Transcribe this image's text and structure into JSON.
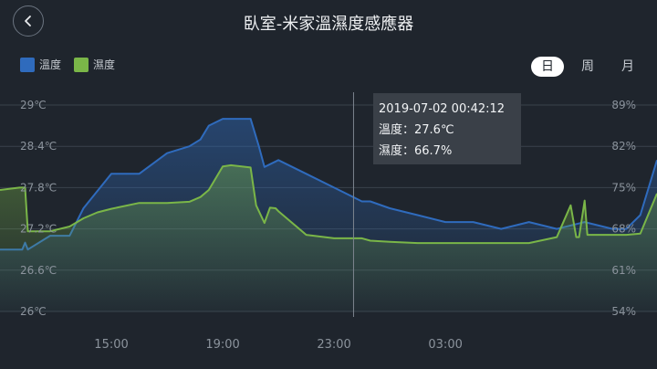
{
  "header": {
    "title": "臥室-米家溫濕度感應器",
    "back_icon": "chevron-left-icon"
  },
  "legend": [
    {
      "label": "溫度",
      "color": "#2f6bbd"
    },
    {
      "label": "濕度",
      "color": "#7ab648"
    }
  ],
  "range_tabs": [
    {
      "label": "日",
      "active": true
    },
    {
      "label": "周",
      "active": false
    },
    {
      "label": "月",
      "active": false
    }
  ],
  "tooltip": {
    "time": "2019-07-02 00:42:12",
    "temp": "溫度：27.6℃",
    "hum": "濕度：66.7%"
  },
  "chart_data": {
    "type": "line",
    "x_ticks": [
      "15:00",
      "19:00",
      "23:00",
      "03:00"
    ],
    "y_left_ticks": [
      "29℃",
      "28.4℃",
      "27.8℃",
      "27.2℃",
      "26.6℃",
      "26℃"
    ],
    "y_right_ticks": [
      "89%",
      "82%",
      "75%",
      "68%",
      "61%",
      "54%"
    ],
    "ylim_left": [
      26,
      29
    ],
    "ylim_right": [
      54,
      89
    ],
    "xlim": [
      11.0,
      34.6
    ],
    "series": [
      {
        "name": "溫度",
        "color": "#2f6bbd",
        "x": [
          11.0,
          11.8,
          11.9,
          12.0,
          12.8,
          13.5,
          14.0,
          14.4,
          15.0,
          16.0,
          17.0,
          17.8,
          18.2,
          18.5,
          19.0,
          19.3,
          20.0,
          20.3,
          20.5,
          21.0,
          22.0,
          23.0,
          24.0,
          24.3,
          25.0,
          26.0,
          27.0,
          28.0,
          29.0,
          30.0,
          31.0,
          32.0,
          33.0,
          33.5,
          34.0,
          34.6
        ],
        "y": [
          26.9,
          26.9,
          27.0,
          26.9,
          27.1,
          27.1,
          27.5,
          27.7,
          28.0,
          28.0,
          28.3,
          28.4,
          28.5,
          28.7,
          28.8,
          28.8,
          28.8,
          28.4,
          28.1,
          28.2,
          28.0,
          27.8,
          27.6,
          27.6,
          27.5,
          27.4,
          27.3,
          27.3,
          27.2,
          27.3,
          27.2,
          27.3,
          27.2,
          27.2,
          27.4,
          28.2
        ]
      },
      {
        "name": "濕度",
        "color": "#7ab648",
        "x": [
          11.0,
          11.7,
          11.9,
          12.0,
          12.8,
          13.5,
          14.0,
          14.5,
          15.0,
          16.0,
          17.0,
          17.8,
          18.2,
          18.5,
          19.0,
          19.3,
          20.0,
          20.2,
          20.5,
          20.7,
          20.9,
          21.0,
          22.0,
          23.0,
          24.0,
          24.3,
          25.0,
          26.0,
          27.0,
          28.0,
          29.0,
          30.0,
          31.0,
          31.5,
          31.7,
          31.8,
          32.0,
          32.1,
          32.2,
          33.0,
          33.5,
          34.0,
          34.6
        ],
        "y": [
          74.6,
          75.0,
          75.0,
          67.6,
          67.6,
          68.4,
          69.8,
          70.8,
          71.4,
          72.4,
          72.4,
          72.6,
          73.4,
          74.6,
          78.6,
          78.8,
          78.4,
          72.0,
          69.0,
          71.6,
          71.5,
          71.0,
          67.0,
          66.4,
          66.4,
          66.0,
          65.8,
          65.6,
          65.6,
          65.6,
          65.6,
          65.6,
          66.6,
          72.0,
          66.6,
          66.6,
          72.8,
          67.0,
          67.0,
          67.0,
          67.0,
          67.2,
          74.0
        ]
      }
    ],
    "cursor_x": 23.7,
    "grid": true
  }
}
